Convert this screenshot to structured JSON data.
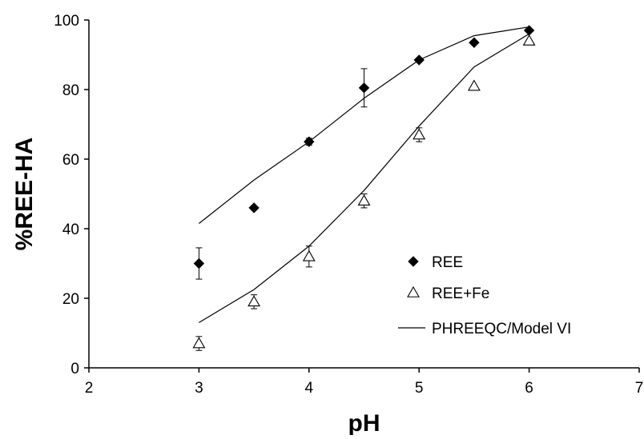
{
  "chart_data": {
    "type": "scatter",
    "title": "",
    "xlabel": "pH",
    "ylabel": "%REE-HA",
    "xlim": [
      2,
      7
    ],
    "ylim": [
      0,
      100
    ],
    "xticks": [
      2,
      3,
      4,
      5,
      6,
      7
    ],
    "yticks": [
      0,
      20,
      40,
      60,
      80,
      100
    ],
    "grid": false,
    "legend_position": "bottom-right",
    "series": [
      {
        "name": "REE",
        "kind": "points",
        "marker": "filled-diamond",
        "x": [
          3,
          3.5,
          4,
          4.5,
          5,
          5.5,
          6
        ],
        "y": [
          30,
          46,
          65,
          80.5,
          88.5,
          93.5,
          97
        ],
        "error": [
          4.5,
          0,
          1,
          5.5,
          0.5,
          0,
          0
        ]
      },
      {
        "name": "REE+Fe",
        "kind": "points",
        "marker": "open-triangle",
        "x": [
          3,
          3.5,
          4,
          4.5,
          5,
          5.5,
          6
        ],
        "y": [
          7,
          19,
          32,
          48,
          67,
          81,
          94
        ],
        "error": [
          2,
          2,
          3,
          2,
          2,
          0,
          0
        ]
      },
      {
        "name": "PHREEQC/Model VI",
        "kind": "line",
        "x": [
          3,
          3.5,
          4,
          4.5,
          5,
          5.5,
          6
        ],
        "y": [
          41.5,
          54,
          65,
          77.5,
          88.5,
          95.5,
          98
        ]
      },
      {
        "name": "",
        "kind": "line",
        "legend": false,
        "x": [
          3,
          3.5,
          4,
          4.5,
          5,
          5.5,
          6
        ],
        "y": [
          13,
          22.5,
          35,
          51,
          69.5,
          86.5,
          96
        ]
      }
    ]
  },
  "colors": {
    "marker": "#000000",
    "line": "#000000",
    "background": "#ffffff"
  }
}
